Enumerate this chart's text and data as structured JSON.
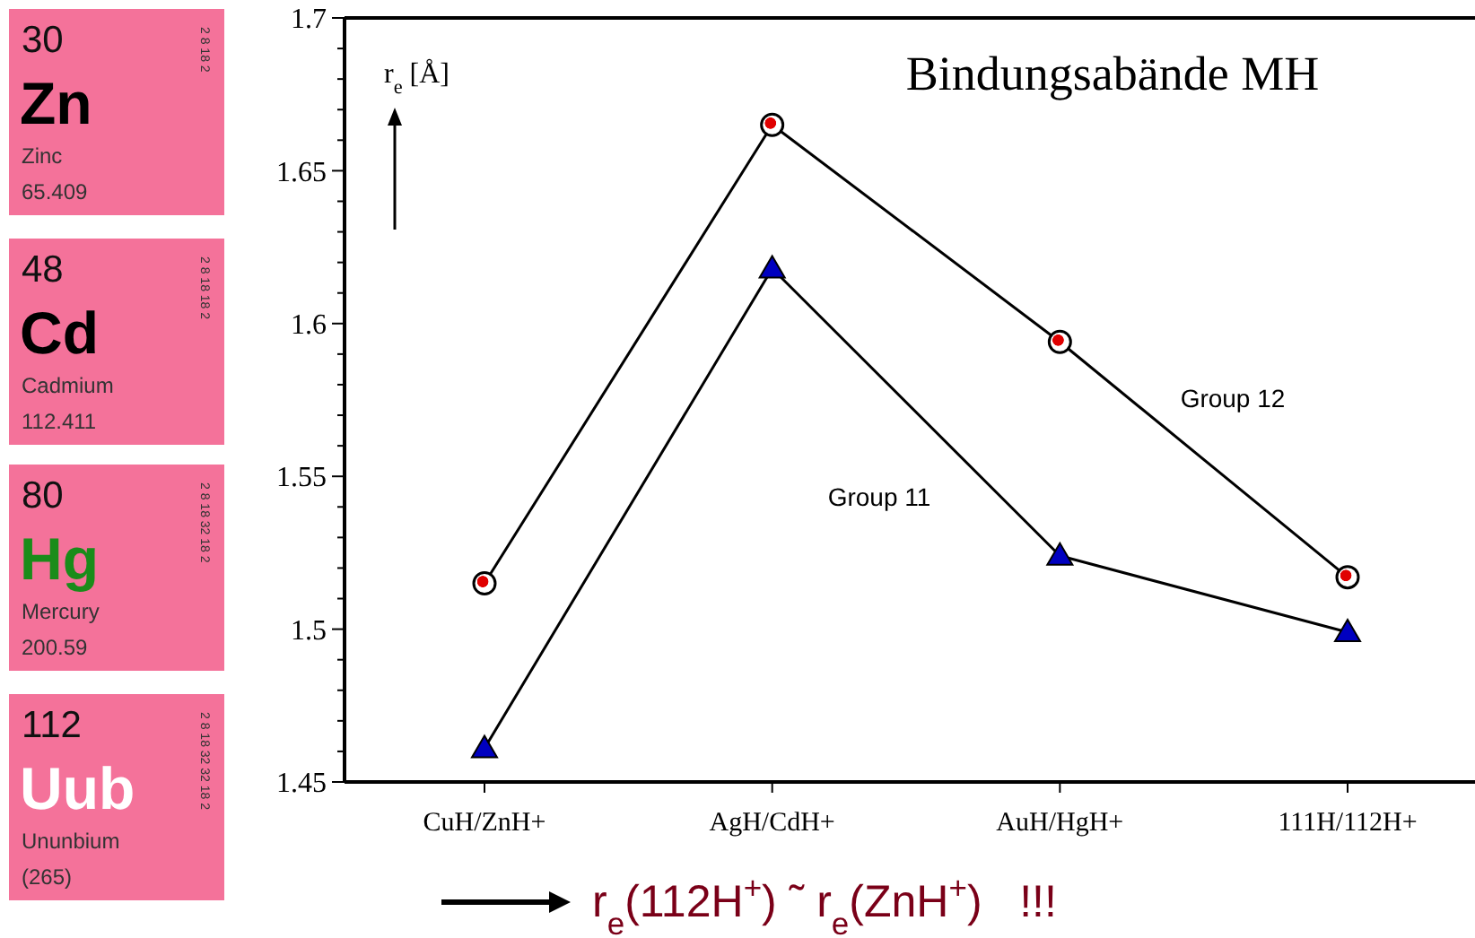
{
  "chart_data": {
    "type": "line",
    "title": "Bindungsabände MH",
    "ylabel": "r$_{e}$ [Å]",
    "categories": [
      "CuH/ZnH+",
      "AgH/CdH+",
      "AuH/HgH+",
      "111H/112H+"
    ],
    "series": [
      {
        "name": "Group 12",
        "color": "#000000",
        "marker": "circle",
        "values": [
          1.515,
          1.665,
          1.594,
          1.517
        ]
      },
      {
        "name": "Group 11",
        "color": "#000000",
        "marker": "triangle",
        "values": [
          1.461,
          1.618,
          1.524,
          1.499
        ]
      }
    ],
    "ylim": [
      1.45,
      1.7
    ],
    "yticks": [
      1.45,
      {
        "value": 1.46,
        "label": null
      },
      {
        "value": 1.47,
        "label": null
      },
      {
        "value": 1.48,
        "label": null
      },
      {
        "value": 1.49,
        "label": null
      },
      1.5,
      {
        "value": 1.51,
        "label": null
      },
      {
        "value": 1.52,
        "label": null
      },
      {
        "value": 1.53,
        "label": null
      },
      {
        "value": 1.54,
        "label": null
      },
      1.55,
      {
        "value": 1.56,
        "label": null
      },
      {
        "value": 1.57,
        "label": null
      },
      {
        "value": 1.58,
        "label": null
      },
      {
        "value": 1.59,
        "label": null
      },
      1.6,
      {
        "value": 1.61,
        "label": null
      },
      {
        "value": 1.62,
        "label": null
      },
      {
        "value": 1.63,
        "label": null
      },
      {
        "value": 1.64,
        "label": null
      },
      1.65,
      {
        "value": 1.66,
        "label": null
      },
      {
        "value": 1.67,
        "label": null
      },
      {
        "value": 1.68,
        "label": null
      },
      {
        "value": 1.69,
        "label": null
      },
      1.7
    ],
    "grid": false,
    "legend": false,
    "line_style": "solid",
    "annotations": [
      "r$_{e}$(112H$^{+}$) ˜ r$_{e}$(ZnH$^{+}$)   !!!",
      "30",
      "Zn",
      "Zinc",
      "65.409",
      "2 8 18 2",
      "48",
      "Cd",
      "Cadmium",
      "112.411",
      "2 8 18 18 2",
      "80",
      "Hg",
      "Mercury",
      "200.59",
      "2 8 18 32 18 2",
      "112",
      "Uub",
      "Ununbium",
      "(265)",
      "2 8 18 32 32 18 2"
    ]
  }
}
